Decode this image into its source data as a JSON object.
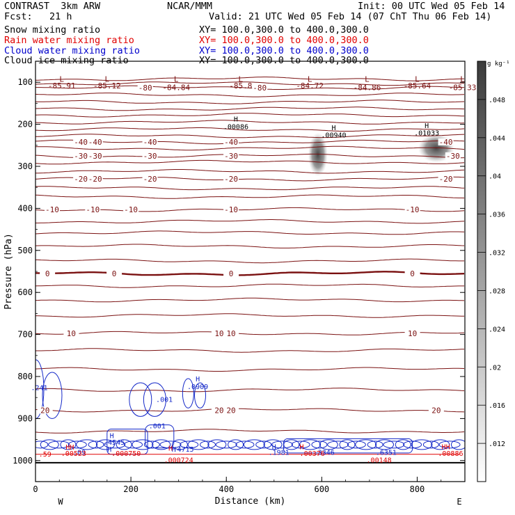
{
  "header": {
    "model": "CONTRAST  3km ARW",
    "center": "NCAR/MMM",
    "init": "Init: 00 UTC Wed 05 Feb 14",
    "fcst": "Fcst:   21 h",
    "valid": "Valid: 21 UTC Wed 05 Feb 14 (07 ChT Thu 06 Feb 14)"
  },
  "fields": [
    {
      "name": "Snow mixing ratio",
      "xy": "XY= 100.0,300.0 to 400.0,300.0",
      "color": "#000000"
    },
    {
      "name": "Rain water mixing ratio",
      "xy": "XY= 100.0,300.0 to 400.0,300.0",
      "color": "#e00000"
    },
    {
      "name": "Cloud water mixing ratio",
      "xy": "XY= 100.0,300.0 to 400.0,300.0",
      "color": "#0000cc"
    },
    {
      "name": "Cloud ice mixing ratio",
      "xy": "XY= 100.0,300.0 to 400.0,300.0",
      "color": "#000000"
    }
  ],
  "colors": {
    "temperature": "#7a1010",
    "zero_line": "#7a1010",
    "cloud_water": "#1428c8",
    "rain": "#e00000",
    "shade": "#3c3c3c"
  },
  "chart_data": {
    "type": "contour-cross-section",
    "xlabel": "Distance (km)",
    "ylabel": "Pressure (hPa)",
    "x_ticks": [
      "0",
      "200",
      "400",
      "600",
      "800"
    ],
    "x_tick_values": [
      0,
      200,
      400,
      600,
      800
    ],
    "y_ticks": [
      "100",
      "200",
      "300",
      "400",
      "500",
      "600",
      "700",
      "800",
      "900",
      "1000"
    ],
    "y_tick_values": [
      100,
      200,
      300,
      400,
      500,
      600,
      700,
      800,
      900,
      1000
    ],
    "xlim": [
      0,
      900
    ],
    "ylim": [
      1050,
      50
    ],
    "direction_left": "W",
    "direction_right": "E",
    "colorbar": {
      "unit": "g kg⁻¹",
      "tick_labels": [
        ".012",
        ".016",
        ".02",
        ".024",
        ".028",
        ".032",
        ".036",
        ".04",
        ".044",
        ".048"
      ],
      "tick_values": [
        0.012,
        0.016,
        0.02,
        0.024,
        0.028,
        0.032,
        0.036,
        0.04,
        0.044,
        0.048
      ],
      "range": [
        0.008,
        0.052
      ]
    },
    "temperature_contours": [
      {
        "p": 92,
        "label": "",
        "label_x": []
      },
      {
        "p": 103,
        "label": "",
        "label_x": []
      },
      {
        "p": 113,
        "label": "-80",
        "label_x": [
          230,
          470
        ]
      },
      {
        "p": 130,
        "label": "",
        "label_x": []
      },
      {
        "p": 147,
        "label": "",
        "label_x": []
      },
      {
        "p": 163,
        "label": "",
        "label_x": []
      },
      {
        "p": 178,
        "label": "",
        "label_x": []
      },
      {
        "p": 195,
        "label": "",
        "label_x": []
      },
      {
        "p": 212,
        "label": "",
        "label_x": []
      },
      {
        "p": 228,
        "label": "",
        "label_x": []
      },
      {
        "p": 242,
        "label": "-40",
        "label_x": [
          95,
          125,
          240,
          410,
          860
        ]
      },
      {
        "p": 257,
        "label": "",
        "label_x": []
      },
      {
        "p": 275,
        "label": "-30",
        "label_x": [
          95,
          125,
          240,
          410,
          875
        ]
      },
      {
        "p": 290,
        "label": "",
        "label_x": []
      },
      {
        "p": 312,
        "label": "",
        "label_x": []
      },
      {
        "p": 330,
        "label": "-20",
        "label_x": [
          95,
          125,
          240,
          410,
          860
        ]
      },
      {
        "p": 352,
        "label": "",
        "label_x": []
      },
      {
        "p": 372,
        "label": "",
        "label_x": []
      },
      {
        "p": 403,
        "label": "-10",
        "label_x": [
          35,
          120,
          200,
          410,
          790
        ]
      },
      {
        "p": 431,
        "label": "",
        "label_x": []
      },
      {
        "p": 458,
        "label": "",
        "label_x": []
      },
      {
        "p": 490,
        "label": "",
        "label_x": []
      },
      {
        "p": 525,
        "label": "",
        "label_x": []
      },
      {
        "p": 555,
        "label": "0",
        "label_x": [
          25,
          165,
          410,
          790
        ]
      },
      {
        "p": 584,
        "label": "",
        "label_x": []
      },
      {
        "p": 618,
        "label": "",
        "label_x": []
      },
      {
        "p": 655,
        "label": "",
        "label_x": []
      },
      {
        "p": 697,
        "label": "10",
        "label_x": [
          75,
          385,
          410,
          790
        ]
      },
      {
        "p": 738,
        "label": "",
        "label_x": []
      },
      {
        "p": 783,
        "label": "",
        "label_x": []
      },
      {
        "p": 832,
        "label": "",
        "label_x": []
      },
      {
        "p": 880,
        "label": "20",
        "label_x": [
          20,
          385,
          410,
          840
        ]
      },
      {
        "p": 930,
        "label": "",
        "label_x": []
      }
    ],
    "upper_labels": [
      {
        "x": 55,
        "p": 92,
        "text": "L"
      },
      {
        "x": 55,
        "p": 108,
        "text": "-85.91"
      },
      {
        "x": 150,
        "p": 92,
        "text": "L"
      },
      {
        "x": 150,
        "p": 108,
        "text": "-85.12"
      },
      {
        "x": 295,
        "p": 92,
        "text": "L"
      },
      {
        "x": 295,
        "p": 112,
        "text": "-84.84"
      },
      {
        "x": 430,
        "p": 92,
        "text": "L"
      },
      {
        "x": 430,
        "p": 108,
        "text": "-85.8"
      },
      {
        "x": 575,
        "p": 92,
        "text": "L"
      },
      {
        "x": 575,
        "p": 108,
        "text": "-84.72"
      },
      {
        "x": 695,
        "p": 92,
        "text": "L"
      },
      {
        "x": 695,
        "p": 112,
        "text": "-84.86"
      },
      {
        "x": 800,
        "p": 92,
        "text": "L"
      },
      {
        "x": 800,
        "p": 108,
        "text": "-85.64"
      },
      {
        "x": 895,
        "p": 92,
        "text": "L"
      },
      {
        "x": 895,
        "p": 112,
        "text": "-85.33"
      }
    ],
    "ice_labels": [
      {
        "x": 420,
        "p": 187,
        "text": "H"
      },
      {
        "x": 420,
        "p": 205,
        "text": ".00086"
      },
      {
        "x": 625,
        "p": 207,
        "text": "H"
      },
      {
        "x": 625,
        "p": 225,
        "text": ".00940"
      },
      {
        "x": 820,
        "p": 202,
        "text": "H"
      },
      {
        "x": 820,
        "p": 220,
        "text": ".01033"
      }
    ],
    "cloud_water_labels": [
      {
        "x": 8,
        "p": 826,
        "text": ".241"
      },
      {
        "x": 340,
        "p": 805,
        "text": "H"
      },
      {
        "x": 340,
        "p": 823,
        "text": ".0909"
      },
      {
        "x": 270,
        "p": 854,
        "text": ".001"
      },
      {
        "x": 255,
        "p": 917,
        "text": ".001"
      },
      {
        "x": 160,
        "p": 940,
        "text": "H"
      },
      {
        "x": 165,
        "p": 956,
        "text": ".4545"
      },
      {
        "x": 155,
        "p": 972,
        "text": "H"
      },
      {
        "x": 290,
        "p": 972,
        "text": "H"
      },
      {
        "x": 310,
        "p": 972,
        "text": ".4715"
      },
      {
        "x": 500,
        "p": 966,
        "text": "H"
      },
      {
        "x": 510,
        "p": 980,
        "text": ".1981"
      },
      {
        "x": 605,
        "p": 980,
        "text": ".3346"
      },
      {
        "x": 735,
        "p": 980,
        "text": ".6351"
      },
      {
        "x": 92,
        "p": 980,
        "text": ".09"
      }
    ],
    "rain_labels": [
      {
        "x": 20,
        "p": 984,
        "text": ".59"
      },
      {
        "x": 72,
        "p": 967,
        "text": "HH"
      },
      {
        "x": 80,
        "p": 982,
        "text": ".00523"
      },
      {
        "x": 190,
        "p": 982,
        "text": ".000750"
      },
      {
        "x": 283,
        "p": 970,
        "text": "H"
      },
      {
        "x": 300,
        "p": 998,
        "text": ".000724"
      },
      {
        "x": 558,
        "p": 966,
        "text": "H"
      },
      {
        "x": 580,
        "p": 982,
        "text": ".00376"
      },
      {
        "x": 720,
        "p": 998,
        "text": ".00148"
      },
      {
        "x": 860,
        "p": 966,
        "text": "HH"
      },
      {
        "x": 870,
        "p": 982,
        "text": ".00886"
      }
    ],
    "shaded_cells": [
      {
        "x": 592,
        "p": 272,
        "rx": 14,
        "rp": 52,
        "level": 0.046
      },
      {
        "x": 840,
        "p": 257,
        "rx": 26,
        "rp": 34,
        "level": 0.04
      }
    ]
  }
}
